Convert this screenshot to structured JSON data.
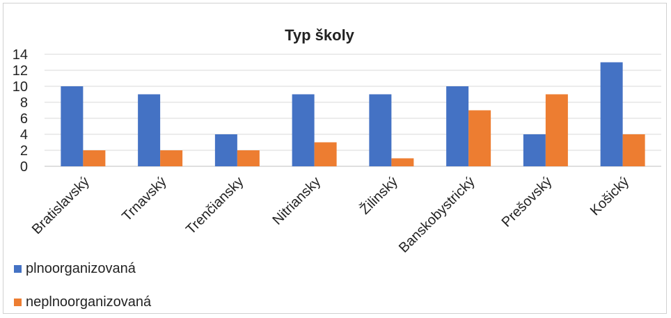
{
  "chart_data": {
    "type": "bar",
    "title": "Typ školy",
    "categories": [
      "Bratislavský",
      "Trnavský",
      "Trenčiansky",
      "Nitriansky",
      "Žilinský",
      "Banskobystrický",
      "Prešovský",
      "Košický"
    ],
    "series": [
      {
        "name": "plnoorganizovaná",
        "color": "#4472c4",
        "values": [
          10,
          9,
          4,
          9,
          9,
          10,
          4,
          13
        ]
      },
      {
        "name": "neplnoorganizovaná",
        "color": "#ed7d31",
        "values": [
          2,
          2,
          2,
          3,
          1,
          7,
          9,
          4
        ]
      }
    ],
    "ylim": [
      0,
      14
    ],
    "yticks": [
      0,
      2,
      4,
      6,
      8,
      10,
      12,
      14
    ],
    "grid": true,
    "legend_position": "bottom-left"
  }
}
